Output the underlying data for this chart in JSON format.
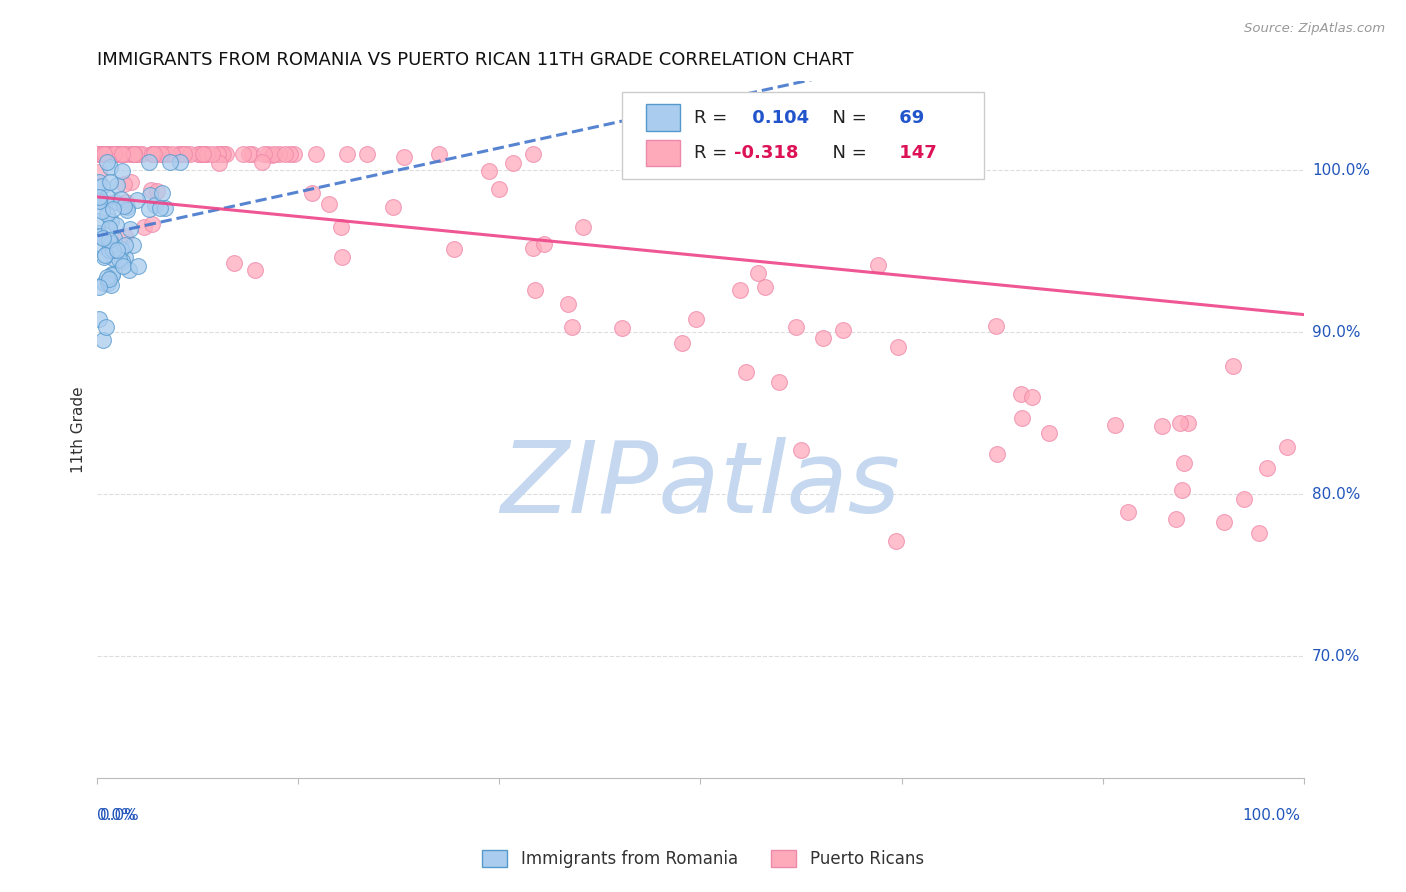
{
  "title": "IMMIGRANTS FROM ROMANIA VS PUERTO RICAN 11TH GRADE CORRELATION CHART",
  "source": "Source: ZipAtlas.com",
  "ylabel": "11th Grade",
  "ytick_labels": [
    "100.0%",
    "90.0%",
    "80.0%",
    "70.0%"
  ],
  "ytick_values": [
    1.0,
    0.9,
    0.8,
    0.7
  ],
  "R_romania": 0.104,
  "N_romania": 69,
  "R_puerto": -0.318,
  "N_puerto": 147,
  "romania_fill": "#aaccee",
  "romania_edge": "#5599cc",
  "puerto_fill": "#ffaabb",
  "puerto_edge": "#ee88aa",
  "romania_line_color": "#4477cc",
  "puerto_line_color": "#ee4488",
  "legend_R_color": "#2255cc",
  "legend_PR_color": "#dd1155",
  "watermark_text": "ZIPatlas",
  "watermark_color": "#c5d8f0",
  "background_color": "#ffffff",
  "grid_color": "#dddddd",
  "xlim": [
    0.0,
    1.0
  ],
  "ylim": [
    0.625,
    1.055
  ],
  "title_fontsize": 13,
  "axis_label_color": "#2255bb",
  "bottom_legend_label1": "Immigrants from Romania",
  "bottom_legend_label2": "Puerto Ricans"
}
